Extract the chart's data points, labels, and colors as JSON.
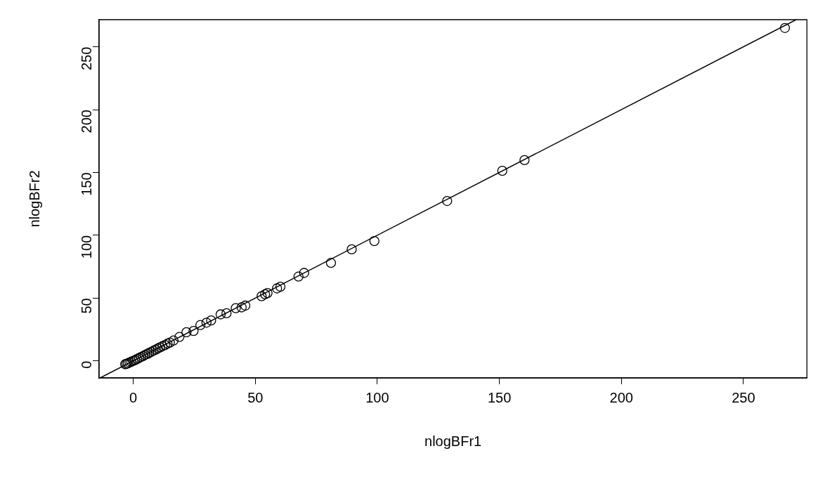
{
  "chart_data": {
    "type": "scatter",
    "xlabel": "nlogBFr1",
    "ylabel": "nlogBFr2",
    "xlim": [
      -14,
      276
    ],
    "ylim": [
      -13.6,
      271.6
    ],
    "xticks": [
      0,
      50,
      100,
      150,
      200,
      250
    ],
    "yticks": [
      0,
      50,
      100,
      150,
      200,
      250
    ],
    "grid": false,
    "legend": false,
    "marker": "circle",
    "series": [
      {
        "color": "#000000",
        "x": [
          -3.3,
          -2.8,
          -2.2,
          -1.5,
          -0.8,
          0,
          0.7,
          1.5,
          2.3,
          3.1,
          4,
          4.8,
          5.7,
          6.5,
          7.4,
          8.3,
          9.2,
          10.1,
          11,
          12,
          13,
          14,
          15,
          16.5,
          18.9,
          21.8,
          24.7,
          27.5,
          30,
          31.9,
          35.8,
          38.2,
          42,
          44.4,
          45.9,
          52.6,
          54,
          55,
          58.9,
          60.3,
          67.7,
          70,
          81,
          89.5,
          98.8,
          128.6,
          151.2,
          160.3,
          267
        ],
        "values": [
          -2.7,
          -2.4,
          -1.9,
          -1.3,
          -0.7,
          0,
          0.6,
          1.4,
          2.2,
          3,
          3.8,
          4.7,
          5.5,
          6.3,
          7.2,
          8.1,
          9,
          9.9,
          10.8,
          11.7,
          12.6,
          13.7,
          14.6,
          16.2,
          19,
          22.8,
          23.8,
          28.5,
          30.4,
          32.2,
          37,
          37.9,
          42,
          42.6,
          44,
          51.5,
          53,
          54,
          57.7,
          59,
          67.1,
          70,
          78,
          88.8,
          95.4,
          127.3,
          151.3,
          159.8,
          265
        ]
      },
      {
        "type": "line",
        "color": "#000000",
        "marker": "none",
        "x": [
          -13.6,
          271.6
        ],
        "values": [
          -13.6,
          271.6
        ]
      }
    ]
  }
}
